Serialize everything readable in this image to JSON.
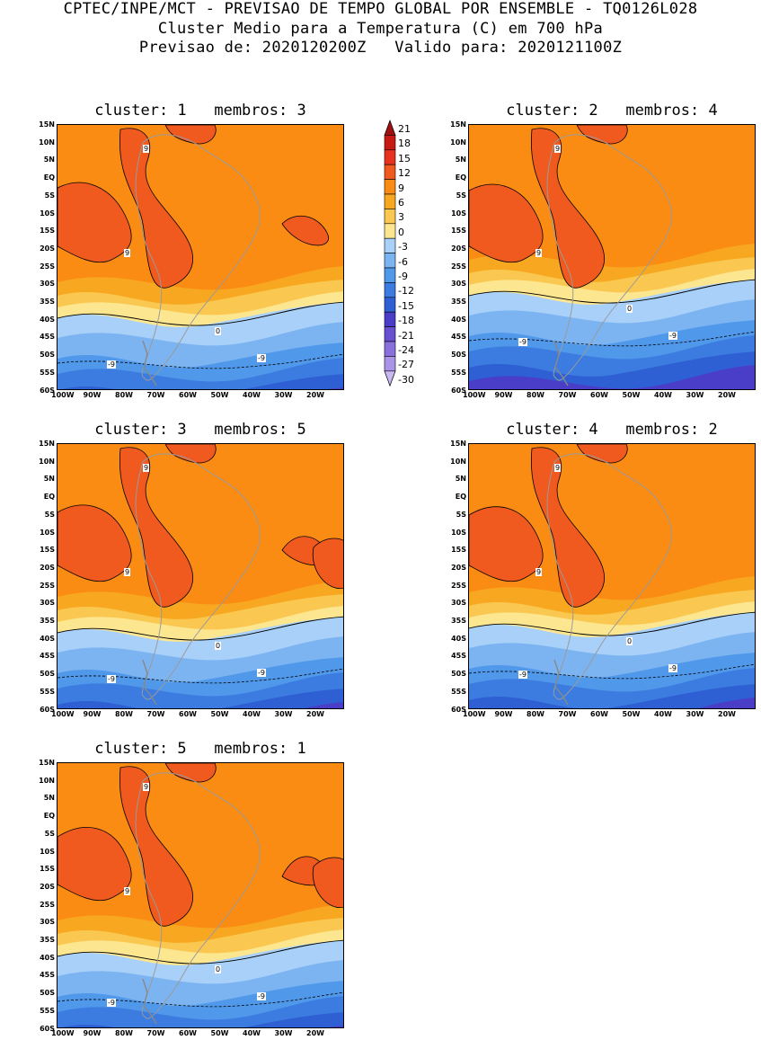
{
  "header": {
    "line1": "CPTEC/INPE/MCT - PREVISAO DE TEMPO GLOBAL POR ENSEMBLE - TQ0126L028",
    "line2": "Cluster Medio para a Temperatura (C) em 700 hPa",
    "line3": "Previsao de: 2020120200Z   Valido para: 2020121100Z"
  },
  "panels": [
    {
      "title": "cluster: 1   membros: 3"
    },
    {
      "title": "cluster: 2   membros: 4"
    },
    {
      "title": "cluster: 3   membros: 5"
    },
    {
      "title": "cluster: 4   membros: 2"
    },
    {
      "title": "cluster: 5   membros: 1"
    }
  ],
  "lat_labels": [
    "15N",
    "10N",
    "5N",
    "EQ",
    "5S",
    "10S",
    "15S",
    "20S",
    "25S",
    "30S",
    "35S",
    "40S",
    "45S",
    "50S",
    "55S",
    "60S"
  ],
  "lon_labels": [
    "100W",
    "90W",
    "80W",
    "70W",
    "60W",
    "50W",
    "40W",
    "30W",
    "20W"
  ],
  "contour_labels": {
    "warm": "9",
    "zero": "0",
    "cold": "-9"
  },
  "colorbar": {
    "values": [
      "21",
      "18",
      "15",
      "12",
      "9",
      "6",
      "3",
      "0",
      "-3",
      "-6",
      "-9",
      "-12",
      "-15",
      "-18",
      "-21",
      "-24",
      "-27",
      "-30"
    ],
    "colors": [
      "#a01010",
      "#c81a14",
      "#e6321e",
      "#f05a1e",
      "#fa8c14",
      "#f8a820",
      "#fac850",
      "#fde690",
      "#a8d0f8",
      "#7cb4f2",
      "#5098ea",
      "#3c7ce0",
      "#2e60d4",
      "#4a3ec8",
      "#6850d0",
      "#8a70dc",
      "#aa94e8",
      "#cab8f2"
    ]
  },
  "colors": {
    "hot": "#f05a1e",
    "orange": "#fa8c14",
    "orange2": "#f8a820",
    "yellow": "#fac850",
    "paleyellow": "#fde690",
    "blue1": "#a8d0f8",
    "blue2": "#7cb4f2",
    "blue3": "#5098ea",
    "blue4": "#3c7ce0",
    "blue5": "#2e60d4",
    "purple": "#4a3ec8",
    "purple2": "#6850d0"
  }
}
